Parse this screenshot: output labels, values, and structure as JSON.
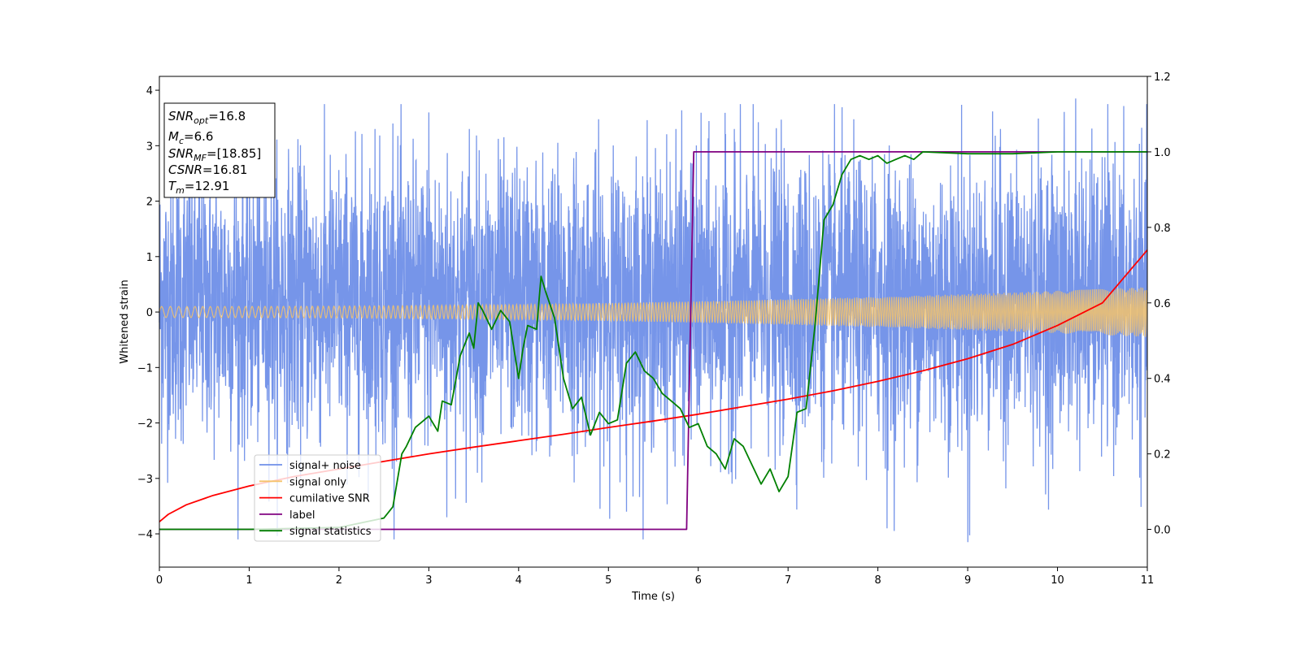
{
  "chart_data": {
    "type": "line",
    "xlabel": "Time (s)",
    "ylabel": "Whitened strain",
    "xlim": [
      0,
      11
    ],
    "ylim": [
      -4.6,
      4.25
    ],
    "y2lim": [
      -0.1,
      1.2
    ],
    "x_ticks": [
      0,
      1,
      2,
      3,
      4,
      5,
      6,
      7,
      8,
      9,
      10,
      11
    ],
    "y_ticks": [
      -4,
      -3,
      -2,
      -1,
      0,
      1,
      2,
      3,
      4
    ],
    "y2_ticks": [
      0.0,
      0.2,
      0.4,
      0.6,
      0.8,
      1.0,
      1.2
    ],
    "grid": false,
    "legend_position": "lower-left",
    "info_box": {
      "line1_main": "SNR",
      "line1_sub": "opt",
      "line1_val": "=16.8",
      "line2_main": "M",
      "line2_sub": "c",
      "line2_val": "=6.6",
      "line3_main": "SNR",
      "line3_sub": "MF",
      "line3_val": "=[18.85]",
      "line4_main": "CSNR",
      "line4_val": "=16.81",
      "line5_main": "T",
      "line5_sub": "m",
      "line5_val": "=12.91"
    },
    "series": [
      {
        "name": "signal+ noise",
        "axis": "left",
        "color": "#6f8fe8",
        "kind": "noise",
        "typical_range": [
          -2.3,
          2.7
        ],
        "extremes": [
          {
            "x": 2.4,
            "y": 3.3
          },
          {
            "x": 2.6,
            "y": 3.4
          },
          {
            "x": 3.0,
            "y": 3.6
          },
          {
            "x": 3.2,
            "y": -3.7
          },
          {
            "x": 3.45,
            "y": 3.3
          },
          {
            "x": 5.2,
            "y": -3.6
          },
          {
            "x": 5.75,
            "y": 3.3
          },
          {
            "x": 6.4,
            "y": 3.3
          },
          {
            "x": 8.1,
            "y": -3.9
          },
          {
            "x": 9.0,
            "y": -4.15
          },
          {
            "x": 10.2,
            "y": 3.85
          }
        ]
      },
      {
        "name": "signal only",
        "axis": "left",
        "color": "#f5c36b",
        "kind": "chirp",
        "amplitude_start": 0.1,
        "amplitude_end": 0.45
      },
      {
        "name": "cumilative SNR",
        "axis": "right",
        "color": "#ff0000",
        "x": [
          0,
          0.1,
          0.3,
          0.6,
          1.0,
          1.5,
          2,
          2.5,
          3,
          3.5,
          4,
          4.5,
          5,
          5.5,
          6,
          6.5,
          7,
          7.5,
          8,
          8.5,
          9,
          9.5,
          10,
          10.5,
          11
        ],
        "y": [
          0.02,
          0.04,
          0.065,
          0.09,
          0.115,
          0.14,
          0.16,
          0.18,
          0.2,
          0.218,
          0.235,
          0.252,
          0.27,
          0.287,
          0.305,
          0.325,
          0.345,
          0.367,
          0.392,
          0.42,
          0.452,
          0.49,
          0.54,
          0.6,
          0.74
        ]
      },
      {
        "name": "label",
        "axis": "right",
        "color": "#800080",
        "x": [
          0,
          5.87,
          5.95,
          11
        ],
        "y": [
          0,
          0,
          1,
          1
        ]
      },
      {
        "name": "signal statistics",
        "axis": "right",
        "color": "#008000",
        "x": [
          0,
          1.0,
          2.0,
          2.5,
          2.6,
          2.7,
          2.75,
          2.85,
          3.0,
          3.1,
          3.15,
          3.25,
          3.35,
          3.45,
          3.5,
          3.55,
          3.6,
          3.7,
          3.8,
          3.9,
          4.0,
          4.05,
          4.1,
          4.2,
          4.25,
          4.3,
          4.4,
          4.5,
          4.6,
          4.7,
          4.8,
          4.9,
          5.0,
          5.1,
          5.2,
          5.3,
          5.4,
          5.5,
          5.6,
          5.7,
          5.8,
          5.9,
          6.0,
          6.1,
          6.2,
          6.3,
          6.4,
          6.5,
          6.6,
          6.7,
          6.8,
          6.9,
          7.0,
          7.1,
          7.2,
          7.3,
          7.4,
          7.5,
          7.6,
          7.7,
          7.8,
          7.9,
          8.0,
          8.1,
          8.2,
          8.3,
          8.4,
          8.5,
          9.0,
          9.5,
          10.0,
          11.0
        ],
        "y": [
          0.0,
          0.0,
          0.005,
          0.03,
          0.06,
          0.2,
          0.22,
          0.27,
          0.3,
          0.26,
          0.34,
          0.33,
          0.46,
          0.52,
          0.48,
          0.6,
          0.58,
          0.53,
          0.58,
          0.55,
          0.4,
          0.48,
          0.54,
          0.53,
          0.67,
          0.63,
          0.56,
          0.4,
          0.32,
          0.35,
          0.25,
          0.31,
          0.28,
          0.29,
          0.44,
          0.47,
          0.42,
          0.4,
          0.36,
          0.34,
          0.32,
          0.27,
          0.28,
          0.22,
          0.2,
          0.16,
          0.24,
          0.22,
          0.17,
          0.12,
          0.16,
          0.1,
          0.14,
          0.31,
          0.32,
          0.54,
          0.82,
          0.86,
          0.94,
          0.98,
          0.99,
          0.98,
          0.99,
          0.97,
          0.98,
          0.99,
          0.98,
          1.0,
          0.995,
          0.995,
          1.0,
          1.0
        ]
      }
    ]
  }
}
